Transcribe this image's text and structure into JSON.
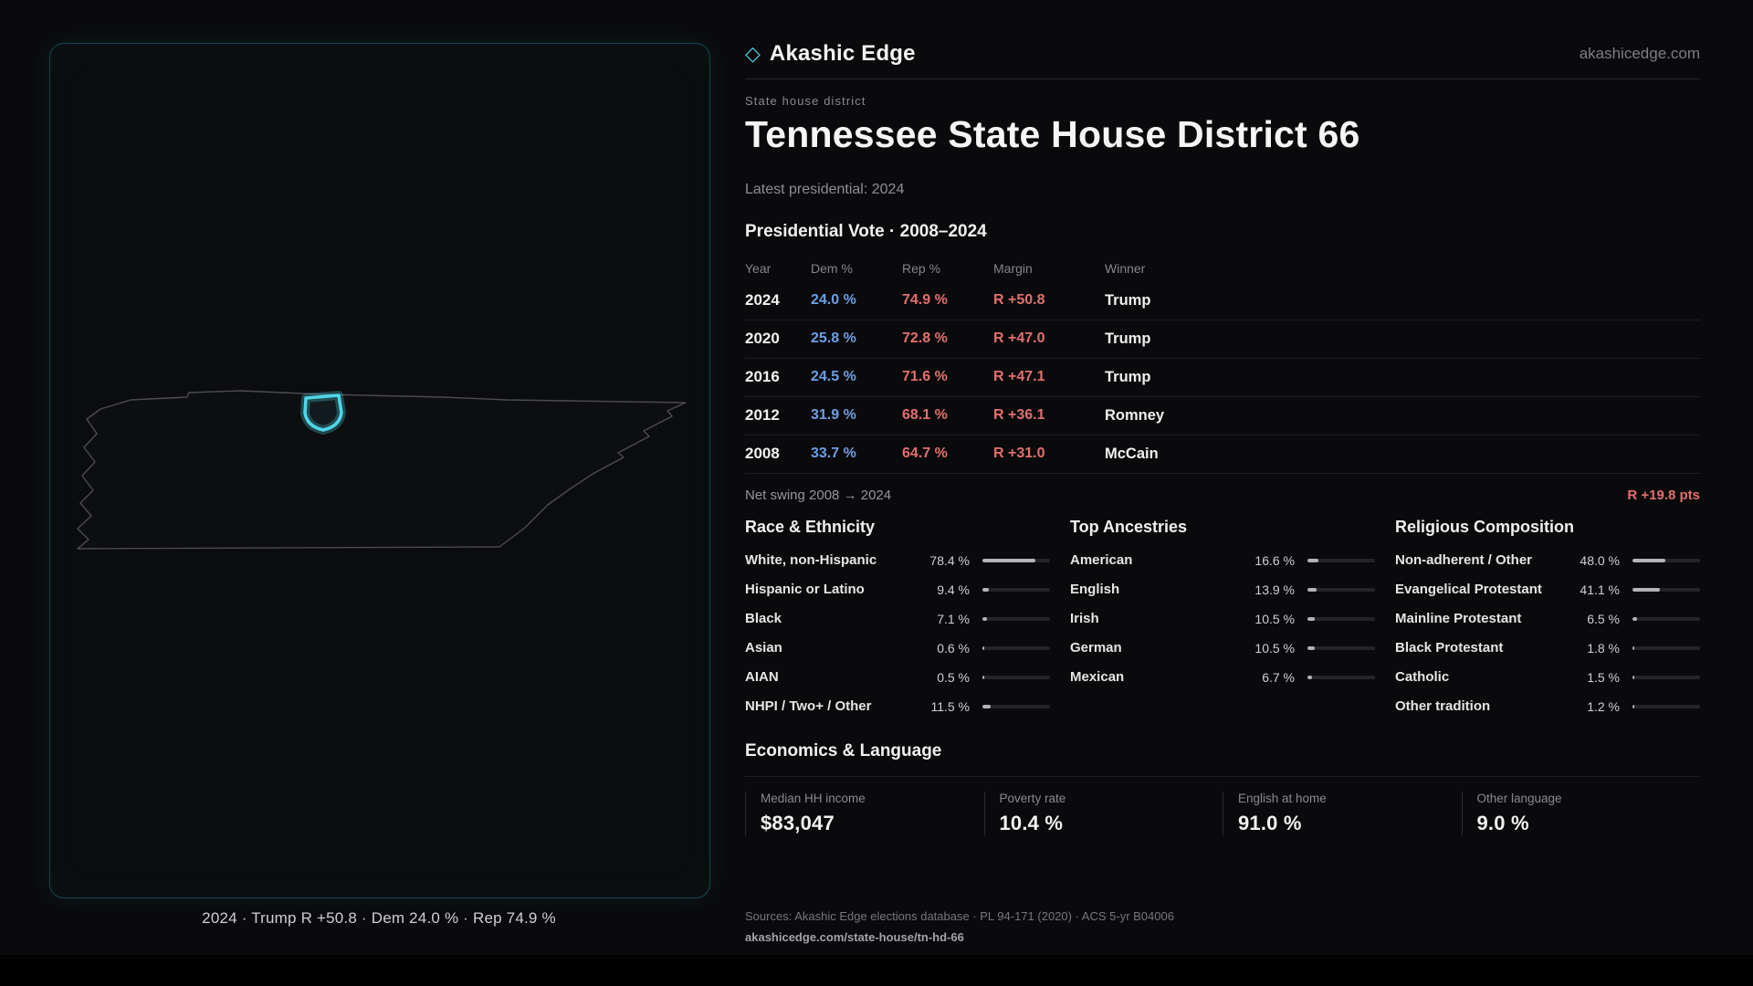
{
  "brand": {
    "diamond": "◇",
    "name": "Akashic Edge",
    "domain": "akashicedge.com"
  },
  "page": {
    "kicker": "State house district",
    "title": "Tennessee State House District 66",
    "latest": "Latest presidential: 2024"
  },
  "map": {
    "caption": "2024 · Trump R +50.8 · Dem 24.0 % · Rep 74.9 %"
  },
  "vote": {
    "title": "Presidential Vote · 2008–2024",
    "columns": {
      "year": "Year",
      "dem": "Dem %",
      "rep": "Rep %",
      "margin": "Margin",
      "winner": "Winner"
    },
    "rows": [
      {
        "year": "2024",
        "dem": "24.0 %",
        "rep": "74.9 %",
        "margin": "R +50.8",
        "winner": "Trump"
      },
      {
        "year": "2020",
        "dem": "25.8 %",
        "rep": "72.8 %",
        "margin": "R +47.0",
        "winner": "Trump"
      },
      {
        "year": "2016",
        "dem": "24.5 %",
        "rep": "71.6 %",
        "margin": "R +47.1",
        "winner": "Trump"
      },
      {
        "year": "2012",
        "dem": "31.9 %",
        "rep": "68.1 %",
        "margin": "R +36.1",
        "winner": "Romney"
      },
      {
        "year": "2008",
        "dem": "33.7 %",
        "rep": "64.7 %",
        "margin": "R +31.0",
        "winner": "McCain"
      }
    ],
    "net_swing_label": "Net swing 2008 → 2024",
    "net_swing_value": "R +19.8 pts"
  },
  "demographics": {
    "race": {
      "title": "Race & Ethnicity",
      "items": [
        {
          "label": "White, non-Hispanic",
          "value": "78.4 %",
          "pct": 78.4
        },
        {
          "label": "Hispanic or Latino",
          "value": "9.4 %",
          "pct": 9.4
        },
        {
          "label": "Black",
          "value": "7.1 %",
          "pct": 7.1
        },
        {
          "label": "Asian",
          "value": "0.6 %",
          "pct": 0.6
        },
        {
          "label": "AIAN",
          "value": "0.5 %",
          "pct": 0.5
        },
        {
          "label": "NHPI / Two+ / Other",
          "value": "11.5 %",
          "pct": 11.5
        }
      ]
    },
    "ancestries": {
      "title": "Top Ancestries",
      "items": [
        {
          "label": "American",
          "value": "16.6 %",
          "pct": 16.6
        },
        {
          "label": "English",
          "value": "13.9 %",
          "pct": 13.9
        },
        {
          "label": "Irish",
          "value": "10.5 %",
          "pct": 10.5
        },
        {
          "label": "German",
          "value": "10.5 %",
          "pct": 10.5
        },
        {
          "label": "Mexican",
          "value": "6.7 %",
          "pct": 6.7
        }
      ]
    },
    "religion": {
      "title": "Religious Composition",
      "items": [
        {
          "label": "Non-adherent / Other",
          "value": "48.0 %",
          "pct": 48.0
        },
        {
          "label": "Evangelical Protestant",
          "value": "41.1 %",
          "pct": 41.1
        },
        {
          "label": "Mainline Protestant",
          "value": "6.5 %",
          "pct": 6.5
        },
        {
          "label": "Black Protestant",
          "value": "1.8 %",
          "pct": 1.8
        },
        {
          "label": "Catholic",
          "value": "1.5 %",
          "pct": 1.5
        },
        {
          "label": "Other tradition",
          "value": "1.2 %",
          "pct": 1.2
        }
      ]
    }
  },
  "economics": {
    "title": "Economics & Language",
    "stats": [
      {
        "label": "Median HH income",
        "value": "$83,047"
      },
      {
        "label": "Poverty rate",
        "value": "10.4 %"
      },
      {
        "label": "English at home",
        "value": "91.0 %"
      },
      {
        "label": "Other language",
        "value": "9.0 %"
      }
    ]
  },
  "footer": {
    "sources": "Sources: Akashic Edge elections database · PL 94-171 (2020) · ACS 5-yr B04006",
    "permalink": "akashicedge.com/state-house/tn-hd-66"
  },
  "colors": {
    "accent": "#4fd6e8",
    "dem": "#6f9ee3",
    "rep": "#e2706d",
    "background": "#0a0a0c"
  }
}
